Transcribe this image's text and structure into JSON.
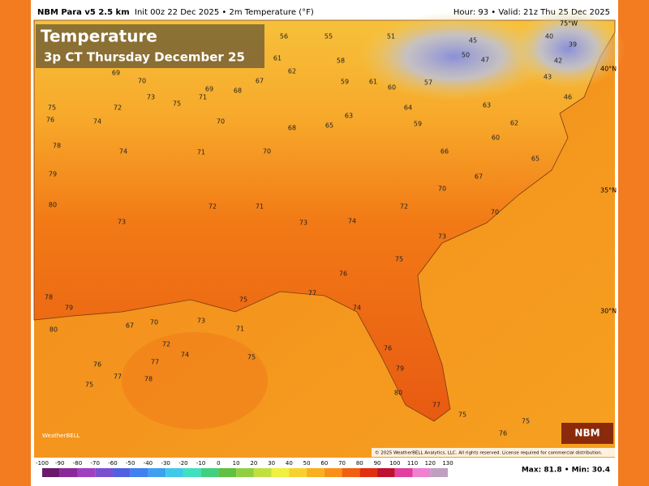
{
  "header": {
    "model": "NBM Para v5 2.5 km",
    "info": "Init 00z 22 Dec 2025 • 2m Temperature (°F)",
    "valid": "Hour: 93 • Valid: 21z Thu 25 Dec 2025"
  },
  "title": {
    "line1": "Temperature",
    "line2": "3p CT Thursday December 25"
  },
  "map_labels": {
    "lat": [
      "40°N",
      "35°N",
      "30°N"
    ],
    "lon": "75°W"
  },
  "stations": [
    69,
    70,
    72,
    75,
    76,
    74,
    73,
    75,
    71,
    70,
    69,
    68,
    67,
    62,
    61,
    56,
    55,
    58,
    59,
    61,
    60,
    64,
    63,
    65,
    68,
    70,
    71,
    74,
    78,
    79,
    80,
    73,
    72,
    71,
    73,
    74,
    72,
    70,
    67,
    66,
    60,
    59,
    63,
    57,
    51,
    50,
    47,
    45,
    42,
    40,
    39,
    46,
    43,
    62,
    65,
    70,
    73,
    75,
    76,
    77,
    74,
    75,
    71,
    72,
    76,
    75,
    77,
    78,
    80,
    79,
    78,
    74,
    75,
    77,
    73,
    67,
    70,
    76,
    79,
    80,
    77,
    75,
    76,
    75
  ],
  "badge": "NBM",
  "logo": "WeatherBELL",
  "copyright": "© 2025 WeatherBELL Analytics, LLC. All rights reserved. License required for commercial distribution.",
  "colorbar": {
    "ticks": [
      -100,
      -90,
      -80,
      -70,
      -60,
      -50,
      -40,
      -30,
      -20,
      -10,
      0,
      10,
      20,
      30,
      40,
      50,
      60,
      70,
      80,
      90,
      100,
      110,
      120,
      130
    ]
  },
  "stats": "Max: 81.8 • Min: 30.4"
}
